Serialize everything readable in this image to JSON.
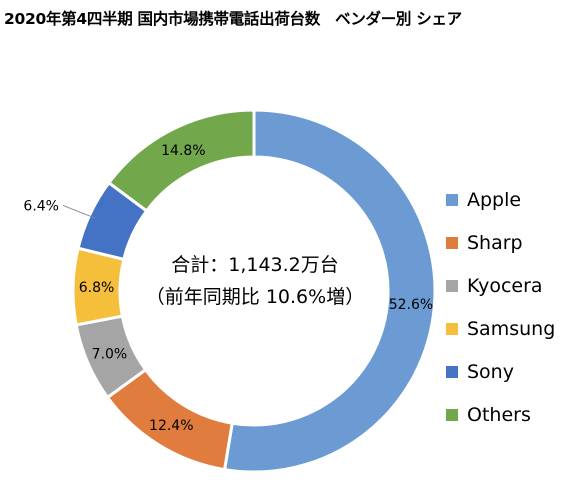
{
  "title": "2020年第4四半期 国内市場携帯電話出荷台数　ベンダー別 シェア",
  "center": {
    "line1": "合計：1,143.2万台",
    "line2": "（前年同期比 10.6%増）"
  },
  "chart_data": {
    "type": "pie",
    "variant": "donut",
    "title": "2020年第4四半期 国内市場携帯電話出荷台数　ベンダー別 シェア",
    "categories": [
      "Apple",
      "Sharp",
      "Kyocera",
      "Samsung",
      "Sony",
      "Others"
    ],
    "values": [
      52.6,
      12.4,
      7.0,
      6.8,
      6.4,
      14.8
    ],
    "data_labels": [
      "52.6%",
      "12.4%",
      "7.0%",
      "6.8%",
      "6.4%",
      "14.8%"
    ],
    "colors": [
      "#6b9bd2",
      "#e07c3e",
      "#a5a5a5",
      "#f5bf3c",
      "#4472c4",
      "#72a84b"
    ],
    "legend": "right"
  }
}
